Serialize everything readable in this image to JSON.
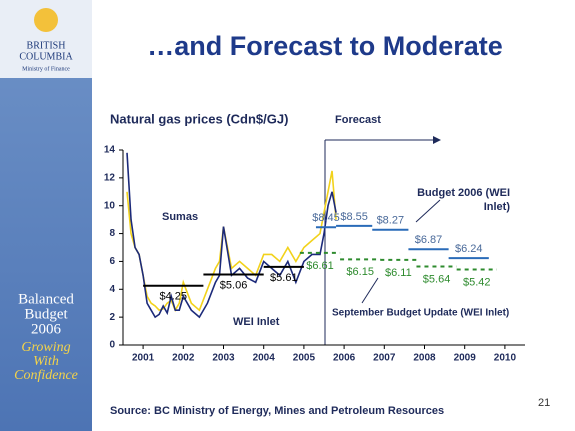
{
  "slide": {
    "title": "…and Forecast to Moderate",
    "page_number": "21",
    "source": "Source:  BC Ministry of Energy, Mines and Petroleum Resources",
    "sidebar": {
      "org1": "BRITISH",
      "org2": "COLUMBIA",
      "ministry": "Ministry of Finance",
      "budget1": "Balanced",
      "budget2": "Budget",
      "budget3": "2006",
      "motto1": "Growing",
      "motto2": "With",
      "motto3": "Confidence"
    }
  },
  "chart_data": {
    "type": "line",
    "title": "Natural gas prices (Cdn$/GJ)",
    "annotation": "Forecast",
    "xlim": [
      2000.5,
      2010.5
    ],
    "xticks": [
      2001,
      2002,
      2003,
      2004,
      2005,
      2006,
      2007,
      2008,
      2009,
      2010
    ],
    "ylim": [
      0,
      14
    ],
    "yticks": [
      0,
      2,
      4,
      6,
      8,
      10,
      12,
      14
    ],
    "grid": false,
    "series": [
      {
        "name": "Sumas",
        "color": "#f2d21b",
        "x": [
          2000.6,
          2000.7,
          2000.8,
          2000.9,
          2001.0,
          2001.1,
          2001.2,
          2001.3,
          2001.4,
          2001.5,
          2001.6,
          2001.7,
          2001.8,
          2001.9,
          2002.0,
          2002.2,
          2002.4,
          2002.6,
          2002.8,
          2002.9,
          2003.0,
          2003.2,
          2003.4,
          2003.6,
          2003.8,
          2004.0,
          2004.2,
          2004.4,
          2004.6,
          2004.8,
          2005.0,
          2005.2,
          2005.4,
          2005.5,
          2005.6,
          2005.7,
          2005.8
        ],
        "values": [
          11,
          8,
          7,
          6.5,
          5,
          3.5,
          3,
          2.8,
          2.5,
          2.6,
          3,
          3.2,
          2.5,
          3,
          4.5,
          3,
          2.5,
          4,
          5.5,
          6,
          8.5,
          5.5,
          6,
          5.5,
          5,
          6.5,
          6.5,
          6,
          7,
          6,
          7,
          7.5,
          8,
          9.5,
          11,
          12.5,
          9
        ]
      },
      {
        "name": "WEI Inlet",
        "color": "#1c2a7a",
        "x": [
          2000.6,
          2000.7,
          2000.8,
          2000.9,
          2001.0,
          2001.1,
          2001.2,
          2001.3,
          2001.4,
          2001.5,
          2001.6,
          2001.7,
          2001.8,
          2001.9,
          2002.0,
          2002.2,
          2002.4,
          2002.6,
          2002.8,
          2002.9,
          2003.0,
          2003.2,
          2003.4,
          2003.6,
          2003.8,
          2004.0,
          2004.2,
          2004.4,
          2004.6,
          2004.8,
          2005.0,
          2005.2,
          2005.4,
          2005.5,
          2005.6,
          2005.7,
          2005.8
        ],
        "values": [
          13.8,
          9,
          7,
          6.5,
          5,
          3,
          2.5,
          2,
          2.2,
          2.8,
          2.3,
          3.5,
          2.5,
          2.5,
          3.5,
          2.5,
          2,
          3,
          4.5,
          5,
          8.5,
          5,
          5.5,
          4.8,
          4.5,
          6,
          5.5,
          5,
          6,
          4.5,
          6,
          6.5,
          6.5,
          8,
          10,
          11,
          9.5
        ]
      },
      {
        "color": "#000000",
        "step": true,
        "x": [
          2001.0,
          2002.5,
          2004.0
        ],
        "values": [
          4.25,
          5.06,
          5.61
        ],
        "value_labels": [
          "$4.25",
          "$5.06",
          "$5.61"
        ]
      },
      {
        "name": "Budget 2006 (WEI Inlet)",
        "color": "#2a6bb8",
        "step": true,
        "x": [
          2005.3,
          2005.8,
          2006.7,
          2007.6,
          2008.6
        ],
        "values": [
          8.45,
          8.55,
          8.27,
          6.87,
          6.24
        ],
        "value_labels": [
          "$8.45",
          "$8.55",
          "$8.27",
          "$6.87",
          "$6.24"
        ]
      },
      {
        "name": "September Budget Update (WEI Inlet)",
        "color": "#2e8b2e",
        "step": true,
        "dashed": true,
        "x": [
          2004.9,
          2005.9,
          2006.9,
          2007.8,
          2008.8
        ],
        "values": [
          6.61,
          6.15,
          6.11,
          5.64,
          5.42
        ],
        "value_labels": [
          "$6.61",
          "$6.15",
          "$6.11",
          "$5.64",
          "$5.42"
        ]
      }
    ]
  }
}
